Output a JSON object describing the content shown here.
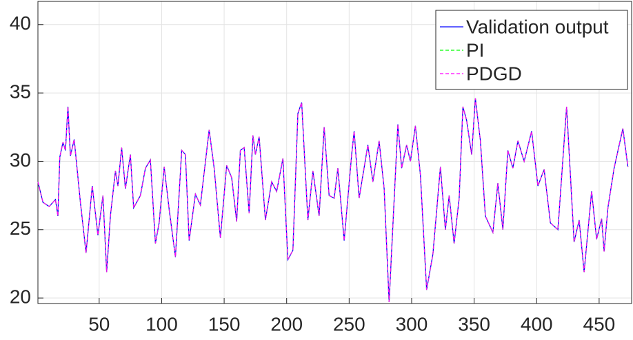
{
  "chart_data": {
    "type": "line",
    "x": [
      1,
      5,
      10,
      15,
      17,
      18.5,
      21,
      23,
      25,
      27,
      30,
      35,
      39.5,
      44.5,
      49,
      53,
      56,
      59,
      63,
      65,
      68,
      71,
      75,
      77.6,
      83,
      87,
      91,
      95,
      98,
      102,
      106,
      111,
      116,
      119,
      122,
      127,
      131,
      138,
      142,
      147,
      152,
      156,
      160,
      163,
      166,
      170,
      173,
      175,
      178,
      183,
      188,
      192,
      197,
      201,
      205,
      209,
      212,
      217,
      221,
      226,
      230,
      234,
      238,
      241,
      246,
      252,
      254,
      258,
      265,
      269,
      274,
      278,
      282,
      289,
      292,
      296,
      299,
      303,
      307,
      312,
      317,
      323,
      327,
      330,
      334,
      338,
      341,
      344,
      348,
      351,
      355,
      359,
      365,
      369,
      373,
      377,
      381,
      385,
      390,
      396,
      401,
      406,
      411,
      417,
      424,
      430,
      434,
      438,
      444,
      448,
      452,
      454,
      457,
      462,
      469,
      473
    ],
    "series": [
      {
        "name": "Validation output",
        "color": "#0000ff",
        "dash": false,
        "values": [
          28.5,
          27.0,
          26.7,
          27.2,
          26.0,
          30.3,
          31.4,
          30.8,
          34.0,
          30.4,
          31.6,
          27.0,
          23.3,
          28.2,
          24.6,
          27.5,
          21.9,
          26.0,
          29.3,
          28.2,
          31.0,
          28.0,
          30.5,
          26.6,
          27.5,
          29.5,
          30.1,
          24.0,
          25.5,
          29.6,
          26.5,
          23.0,
          30.8,
          30.5,
          24.2,
          27.6,
          26.8,
          32.3,
          29.5,
          24.4,
          29.7,
          28.8,
          25.6,
          30.8,
          31.0,
          26.2,
          31.9,
          30.5,
          31.8,
          25.7,
          28.5,
          27.8,
          30.2,
          22.8,
          23.5,
          33.5,
          34.3,
          25.7,
          29.3,
          26.0,
          32.5,
          27.5,
          27.3,
          29.5,
          24.2,
          30.5,
          32.2,
          27.3,
          31.2,
          28.5,
          31.5,
          28.0,
          19.7,
          32.7,
          29.5,
          31.2,
          30.0,
          32.6,
          29.0,
          20.6,
          23.2,
          29.6,
          25.0,
          27.5,
          24.0,
          27.3,
          34.0,
          33.0,
          30.5,
          34.6,
          31.5,
          26.0,
          24.8,
          28.4,
          25.0,
          30.8,
          29.5,
          31.5,
          30.0,
          32.2,
          28.2,
          29.4,
          25.5,
          25.0,
          34.0,
          24.1,
          25.7,
          21.9,
          27.8,
          24.3,
          25.8,
          23.4,
          26.6,
          29.5,
          32.4,
          29.6
        ]
      },
      {
        "name": "PI",
        "color": "#00ff00",
        "dash": true,
        "values": [
          28.5,
          27.0,
          26.7,
          27.2,
          26.0,
          30.3,
          31.4,
          30.8,
          34.0,
          30.4,
          31.6,
          27.0,
          23.3,
          28.2,
          24.6,
          27.5,
          21.9,
          26.0,
          29.3,
          28.2,
          31.0,
          28.0,
          30.5,
          26.6,
          27.5,
          29.5,
          30.1,
          24.0,
          25.5,
          29.6,
          26.5,
          23.0,
          30.8,
          30.5,
          24.2,
          27.6,
          26.8,
          32.3,
          29.5,
          24.4,
          29.7,
          28.8,
          25.6,
          30.8,
          31.0,
          26.2,
          31.9,
          30.5,
          31.8,
          25.7,
          28.5,
          27.8,
          30.2,
          22.8,
          23.5,
          33.5,
          34.3,
          25.7,
          29.3,
          26.0,
          32.5,
          27.5,
          27.3,
          29.5,
          24.2,
          30.5,
          32.2,
          27.3,
          31.2,
          28.5,
          31.5,
          28.0,
          19.7,
          32.7,
          29.5,
          31.2,
          30.0,
          32.6,
          29.0,
          20.6,
          23.2,
          29.6,
          25.0,
          27.5,
          24.0,
          27.3,
          34.0,
          33.0,
          30.5,
          34.6,
          31.5,
          26.0,
          24.8,
          28.4,
          25.0,
          30.8,
          29.5,
          31.5,
          30.0,
          32.2,
          28.2,
          29.4,
          25.5,
          25.0,
          34.0,
          24.1,
          25.7,
          21.9,
          27.8,
          24.3,
          25.8,
          23.4,
          26.6,
          29.5,
          32.4,
          29.6
        ]
      },
      {
        "name": "PDGD",
        "color": "#ff00ff",
        "dash": true,
        "values": [
          28.5,
          27.0,
          26.7,
          27.2,
          26.0,
          30.3,
          31.4,
          30.8,
          34.0,
          30.4,
          31.6,
          27.0,
          23.3,
          28.2,
          24.6,
          27.5,
          21.9,
          26.0,
          29.3,
          28.2,
          31.0,
          28.0,
          30.5,
          26.6,
          27.5,
          29.5,
          30.1,
          24.0,
          25.5,
          29.6,
          26.5,
          23.0,
          30.8,
          30.5,
          24.2,
          27.6,
          26.8,
          32.3,
          29.5,
          24.4,
          29.7,
          28.8,
          25.6,
          30.8,
          31.0,
          26.2,
          31.9,
          30.5,
          31.8,
          25.7,
          28.5,
          27.8,
          30.2,
          22.8,
          23.5,
          33.5,
          34.3,
          25.7,
          29.3,
          26.0,
          32.5,
          27.5,
          27.3,
          29.5,
          24.2,
          30.5,
          32.2,
          27.3,
          31.2,
          28.5,
          31.5,
          28.0,
          19.7,
          32.7,
          29.5,
          31.2,
          30.0,
          32.6,
          29.0,
          20.6,
          23.2,
          29.6,
          25.0,
          27.5,
          24.0,
          27.3,
          34.0,
          33.0,
          30.5,
          34.6,
          31.5,
          26.0,
          24.8,
          28.4,
          25.0,
          30.8,
          29.5,
          31.5,
          30.0,
          32.2,
          28.2,
          29.4,
          25.5,
          25.0,
          34.0,
          24.1,
          25.7,
          21.9,
          27.8,
          24.3,
          25.8,
          23.4,
          26.6,
          29.5,
          32.4,
          29.6
        ]
      }
    ],
    "xlim": [
      1,
      476
    ],
    "ylim": [
      19.6,
      41.7
    ],
    "xticks": [
      50,
      100,
      150,
      200,
      250,
      300,
      350,
      400,
      450
    ],
    "yticks": [
      20,
      25,
      30,
      35,
      40
    ],
    "grid": true,
    "legend": "top-right"
  }
}
